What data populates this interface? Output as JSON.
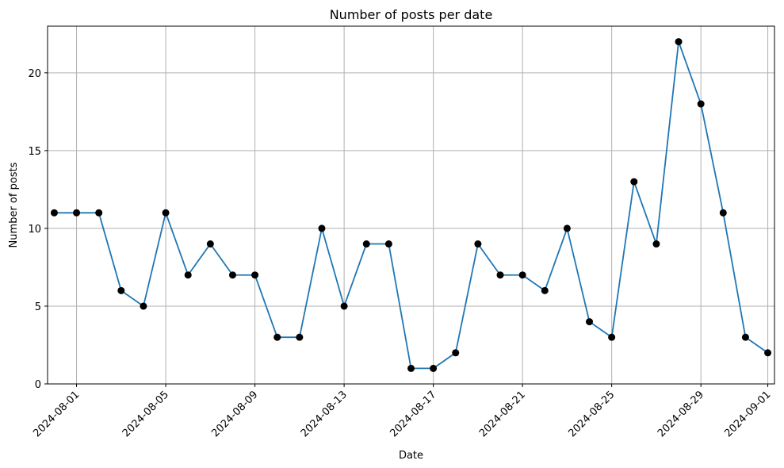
{
  "chart_data": {
    "type": "line",
    "title": "Number of posts per date",
    "xlabel": "Date",
    "ylabel": "Number of posts",
    "x_tick_labels": [
      "2024-08-01",
      "2024-08-05",
      "2024-08-09",
      "2024-08-13",
      "2024-08-17",
      "2024-08-21",
      "2024-08-25",
      "2024-08-29",
      "2024-09-01"
    ],
    "y_tick_labels": [
      "0",
      "5",
      "10",
      "15",
      "20"
    ],
    "ylim": [
      0,
      23
    ],
    "xlim": [
      "2024-07-30",
      "2024-09-02"
    ],
    "grid": true,
    "colors": {
      "line": "#1f77b4",
      "marker": "#000000",
      "grid": "#b0b0b0"
    },
    "x": [
      "2024-07-31",
      "2024-08-01",
      "2024-08-02",
      "2024-08-03",
      "2024-08-04",
      "2024-08-05",
      "2024-08-06",
      "2024-08-07",
      "2024-08-08",
      "2024-08-09",
      "2024-08-10",
      "2024-08-11",
      "2024-08-12",
      "2024-08-13",
      "2024-08-14",
      "2024-08-15",
      "2024-08-16",
      "2024-08-17",
      "2024-08-18",
      "2024-08-19",
      "2024-08-20",
      "2024-08-21",
      "2024-08-22",
      "2024-08-23",
      "2024-08-24",
      "2024-08-25",
      "2024-08-26",
      "2024-08-27",
      "2024-08-28",
      "2024-08-29",
      "2024-08-30",
      "2024-08-31",
      "2024-09-01"
    ],
    "y": [
      11,
      11,
      11,
      6,
      5,
      11,
      7,
      9,
      7,
      7,
      3,
      3,
      10,
      5,
      9,
      9,
      1,
      1,
      2,
      9,
      7,
      7,
      6,
      10,
      4,
      3,
      13,
      9,
      22,
      18,
      11,
      3,
      2
    ]
  }
}
